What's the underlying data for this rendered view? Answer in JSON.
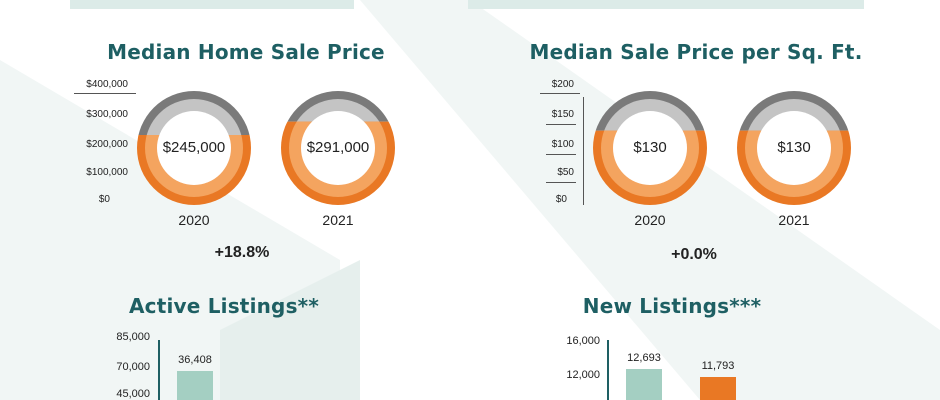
{
  "colors": {
    "teal_title": "#1e5f63",
    "ring_gray": "#7a7a7a",
    "ring_gray_inner": "#c4c4c4",
    "ring_orange": "#e97824",
    "ring_orange_inner": "#f4a45f",
    "bar_2020": "#a4cfc2",
    "bar_2021": "#e97824",
    "bg_shape": "#eef4f3"
  },
  "chart_data": [
    {
      "type": "donut-comparison",
      "title": "Median Home Sale Price",
      "axis_ticks": [
        "$400,000",
        "$300,000",
        "$200,000",
        "$100,000",
        "$0"
      ],
      "ylim": [
        0,
        400000
      ],
      "rings": [
        {
          "year": "2020",
          "value": 245000,
          "label": "$245,000"
        },
        {
          "year": "2021",
          "value": 291000,
          "label": "$291,000"
        }
      ],
      "change": "+18.8%"
    },
    {
      "type": "donut-comparison",
      "title": "Median Sale Price per Sq. Ft.",
      "axis_ticks": [
        "$200",
        "$150",
        "$100",
        "$50",
        "$0"
      ],
      "ylim": [
        0,
        200
      ],
      "rings": [
        {
          "year": "2020",
          "value": 130,
          "label": "$130"
        },
        {
          "year": "2021",
          "value": 130,
          "label": "$130"
        }
      ],
      "change": "+0.0%"
    },
    {
      "type": "bar",
      "title": "Active Listings**",
      "axis_ticks": [
        "85,000",
        "70,000",
        "45,000"
      ],
      "ylim": [
        0,
        85000
      ],
      "values": [
        36408
      ],
      "value_labels": [
        "36,408"
      ]
    },
    {
      "type": "bar",
      "title": "New Listings***",
      "axis_ticks": [
        "16,000",
        "12,000"
      ],
      "ylim": [
        0,
        16000
      ],
      "values": [
        12693,
        11793
      ],
      "value_labels": [
        "12,693",
        "11,793"
      ]
    }
  ]
}
